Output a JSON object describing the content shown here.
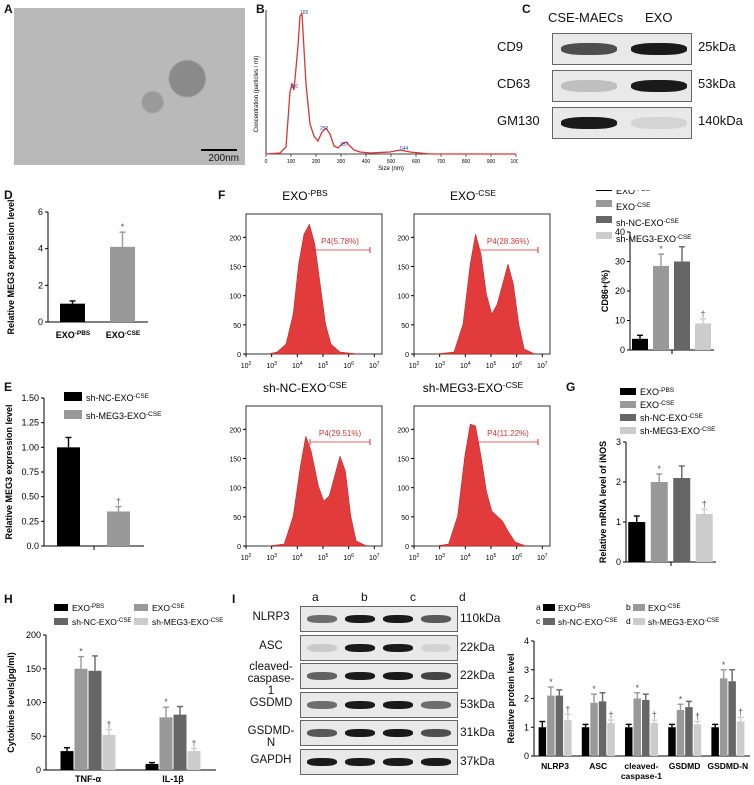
{
  "panels": {
    "A": "A",
    "B": "B",
    "C": "C",
    "D": "D",
    "E": "E",
    "F": "F",
    "G": "G",
    "H": "H",
    "I": "I"
  },
  "A": {
    "scale": "200nm"
  },
  "B": {
    "ylabel": "Concentration (particles / ml)",
    "xlabel": "Size (nm)",
    "xticks": [
      "0",
      "100",
      "200",
      "300",
      "400",
      "500",
      "600",
      "700",
      "800",
      "900",
      "1000"
    ],
    "peaks": [
      "116",
      "165",
      "252",
      "357",
      "544"
    ]
  },
  "C": {
    "cols": [
      "CSE-MAECs",
      "EXO"
    ],
    "rows": [
      {
        "name": "CD9",
        "kda": "25kDa"
      },
      {
        "name": "CD63",
        "kda": "53kDa"
      },
      {
        "name": "GM130",
        "kda": "140kDa"
      }
    ]
  },
  "chart_data": [
    {
      "panel": "D",
      "type": "bar",
      "categories": [
        "EXO-PBS",
        "EXO-CSE"
      ],
      "values": [
        1.0,
        4.1
      ],
      "errors": [
        0.15,
        0.8
      ],
      "ylabel": "Relative MEG3 expression level",
      "ylim": [
        0,
        6
      ],
      "yticks": [
        "0",
        "2",
        "4",
        "6"
      ],
      "sig": [
        "",
        "*"
      ],
      "colors": [
        "#000000",
        "#999999"
      ]
    },
    {
      "panel": "E",
      "type": "bar",
      "categories": [
        "sh-NC-EXO-CSE",
        "sh-MEG3-EXO-CSE"
      ],
      "values": [
        1.0,
        0.35
      ],
      "errors": [
        0.1,
        0.05
      ],
      "ylabel": "Relative MEG3 expression level",
      "ylim": [
        0,
        1.5
      ],
      "yticks": [
        "0.0",
        "0.5",
        "1.0",
        "1.5"
      ],
      "yticks_all": [
        "0.0",
        "0.25",
        "0.50",
        "0.75",
        "1.00",
        "1.25",
        "1.50"
      ],
      "sig": [
        "",
        "†"
      ],
      "colors": [
        "#000000",
        "#999999"
      ]
    },
    {
      "panel": "F-bar",
      "type": "bar",
      "categories": [
        "EXO-PBS",
        "EXO-CSE",
        "sh-NC-EXO-CSE",
        "sh-MEG3-EXO-CSE"
      ],
      "values": [
        3.8,
        28.5,
        30,
        9
      ],
      "errors": [
        1.2,
        4,
        5,
        1.5
      ],
      "ylabel": "CD86+(%)",
      "ylim": [
        0,
        40
      ],
      "yticks": [
        "0",
        "10",
        "20",
        "30",
        "40"
      ],
      "sig": [
        "",
        "*",
        "",
        "†"
      ],
      "colors": [
        "#000000",
        "#999999",
        "#666666",
        "#cccccc"
      ]
    },
    {
      "panel": "G",
      "type": "bar",
      "categories": [
        "EXO-PBS",
        "EXO-CSE",
        "sh-NC-EXO-CSE",
        "sh-MEG3-EXO-CSE"
      ],
      "values": [
        1.0,
        2.0,
        2.1,
        1.2
      ],
      "errors": [
        0.15,
        0.2,
        0.3,
        0.12
      ],
      "ylabel": "Relative mRNA level of iNOS",
      "ylim": [
        0,
        3
      ],
      "yticks": [
        "0",
        "1",
        "2",
        "3"
      ],
      "sig": [
        "",
        "*",
        "",
        "†"
      ],
      "colors": [
        "#000000",
        "#999999",
        "#666666",
        "#cccccc"
      ]
    },
    {
      "panel": "H",
      "type": "bar",
      "categories": [
        "TNF-α",
        "IL-1β"
      ],
      "series": [
        {
          "name": "EXO-PBS",
          "values": [
            28,
            9
          ],
          "errors": [
            5,
            2
          ]
        },
        {
          "name": "EXO-CSE",
          "values": [
            150,
            78
          ],
          "errors": [
            18,
            15
          ]
        },
        {
          "name": "sh-NC-EXO-CSE",
          "values": [
            147,
            82
          ],
          "errors": [
            22,
            12
          ]
        },
        {
          "name": "sh-MEG3-EXO-CSE",
          "values": [
            52,
            28
          ],
          "errors": [
            8,
            4
          ]
        }
      ],
      "ylabel": "Cytokines levels(pg/ml)",
      "ylim": [
        0,
        200
      ],
      "yticks": [
        "0",
        "50",
        "100",
        "150",
        "200"
      ],
      "colors": [
        "#000000",
        "#999999",
        "#666666",
        "#cccccc"
      ],
      "sig": [
        [
          "",
          "*",
          "",
          "†"
        ],
        [
          "",
          "*",
          "",
          "†"
        ]
      ]
    },
    {
      "panel": "I-bar",
      "type": "bar",
      "categories": [
        "NLRP3",
        "ASC",
        "cleaved-caspase-1",
        "GSDMD",
        "GSDMD-N"
      ],
      "series": [
        {
          "name": "EXO-PBS",
          "values": [
            1.0,
            1.0,
            1.0,
            1.0,
            1.0
          ],
          "errors": [
            0.2,
            0.1,
            0.1,
            0.1,
            0.1
          ]
        },
        {
          "name": "EXO-CSE",
          "values": [
            2.1,
            1.85,
            2.0,
            1.6,
            2.7
          ],
          "errors": [
            0.3,
            0.3,
            0.2,
            0.2,
            0.3
          ]
        },
        {
          "name": "sh-NC-EXO-CSE",
          "values": [
            2.1,
            1.9,
            1.95,
            1.7,
            2.6
          ],
          "errors": [
            0.2,
            0.3,
            0.2,
            0.2,
            0.4
          ]
        },
        {
          "name": "sh-MEG3-EXO-CSE",
          "values": [
            1.25,
            1.15,
            1.15,
            1.1,
            1.2
          ],
          "errors": [
            0.2,
            0.1,
            0.1,
            0.1,
            0.15
          ]
        }
      ],
      "ylabel": "Relative protein level",
      "ylim": [
        0,
        4
      ],
      "yticks": [
        "0",
        "1",
        "2",
        "3",
        "4"
      ],
      "colors": [
        "#000000",
        "#999999",
        "#666666",
        "#cccccc"
      ],
      "sig": [
        [
          "",
          "*",
          "",
          "†"
        ],
        [
          "",
          "*",
          "",
          "†"
        ],
        [
          "",
          "*",
          "",
          "†"
        ],
        [
          "",
          "*",
          "",
          "†"
        ],
        [
          "",
          "*",
          "",
          "†"
        ]
      ]
    }
  ],
  "flow": {
    "panels": [
      {
        "title": "EXO",
        "sup": "-PBS",
        "gate": "P4(5.78%)"
      },
      {
        "title": "EXO",
        "sup": "-CSE",
        "gate": "P4(28.36%)"
      },
      {
        "title": "sh-NC-EXO",
        "sup": "-CSE",
        "gate": "P4(29.51%)"
      },
      {
        "title": "sh-MEG3-EXO",
        "sup": "-CSE",
        "gate": "P4(11.22%)"
      }
    ],
    "yticks": [
      "0",
      "50",
      "100",
      "150",
      "200"
    ],
    "xticks": [
      "10",
      "2",
      "10",
      "3",
      "10",
      "4",
      "10",
      "5",
      "10",
      "6",
      "10",
      "7"
    ]
  },
  "legend4": [
    {
      "base": "EXO",
      "sup": "-PBS"
    },
    {
      "base": "EXO",
      "sup": "-CSE"
    },
    {
      "base": "sh-NC-EXO",
      "sup": "-CSE"
    },
    {
      "base": "sh-MEG3-EXO",
      "sup": "-CSE"
    }
  ],
  "legendE": [
    {
      "base": "sh-NC-EXO",
      "sup": "-CSE"
    },
    {
      "base": "sh-MEG3-EXO",
      "sup": "-CSE"
    }
  ],
  "D_xlabels": [
    {
      "base": "EXO",
      "sup": "-PBS"
    },
    {
      "base": "EXO",
      "sup": "-CSE"
    }
  ],
  "I": {
    "lanes": [
      "a",
      "b",
      "c",
      "d"
    ],
    "rows": [
      {
        "name": "NLRP3",
        "kda": "110kDa"
      },
      {
        "name": "ASC",
        "kda": "22kDa"
      },
      {
        "name": "cleaved-caspase-1",
        "kda": "22kDa"
      },
      {
        "name": "GSDMD",
        "kda": "53kDa"
      },
      {
        "name": "GSDMD-N",
        "kda": "31kDa"
      },
      {
        "name": "GAPDH",
        "kda": "37kDa"
      }
    ],
    "legend": [
      {
        "k": "a",
        "base": "EXO",
        "sup": "-PBS"
      },
      {
        "k": "b",
        "base": "EXO",
        "sup": "-CSE"
      },
      {
        "k": "c",
        "base": "sh-NC-EXO",
        "sup": "-CSE"
      },
      {
        "k": "d",
        "base": "sh-MEG3-EXO",
        "sup": "-CSE"
      }
    ]
  }
}
